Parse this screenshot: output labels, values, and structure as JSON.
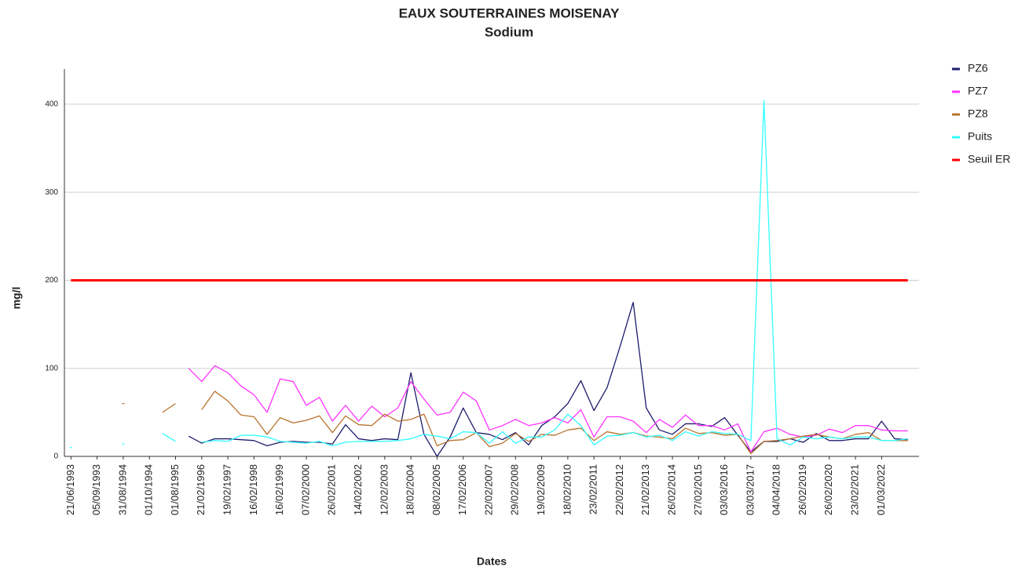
{
  "chart_data": {
    "type": "line",
    "title": "EAUX SOUTERRAINES MOISENAY",
    "subtitle": "Sodium",
    "x_label": "Dates",
    "y_label": "mg/l",
    "categories": [
      "21/06/1993",
      null,
      "05/09/1993",
      null,
      "31/08/1994",
      null,
      "01/10/1994",
      null,
      "01/08/1995",
      null,
      "21/02/1996",
      null,
      "19/02/1997",
      null,
      "16/02/1998",
      null,
      "16/02/1999",
      null,
      "07/02/2000",
      null,
      "26/02/2001",
      null,
      "14/02/2002",
      null,
      "12/02/2003",
      null,
      "18/02/2004",
      null,
      "08/02/2005",
      null,
      "17/02/2006",
      null,
      "22/02/2007",
      null,
      "29/02/2008",
      null,
      "19/02/2009",
      null,
      "18/02/2010",
      null,
      "23/02/2011",
      null,
      "22/02/2012",
      null,
      "21/02/2013",
      null,
      "26/02/2014",
      null,
      "27/02/2015",
      null,
      "03/03/2016",
      null,
      "03/03/2017",
      null,
      "04/04/2018",
      null,
      "26/02/2019",
      null,
      "26/02/2020",
      null,
      "23/02/2021",
      null,
      "01/03/2022",
      null,
      null
    ],
    "series": [
      {
        "name": "PZ6",
        "color": "#1c1c6c",
        "values": [
          null,
          null,
          null,
          null,
          null,
          null,
          null,
          null,
          null,
          23,
          15,
          20,
          20,
          19,
          18,
          12,
          16,
          17,
          16,
          16,
          14,
          36,
          20,
          18,
          20,
          19,
          95,
          25,
          0,
          22,
          55,
          27,
          25,
          19,
          27,
          13,
          35,
          45,
          60,
          86,
          52,
          78,
          125,
          175,
          55,
          30,
          25,
          37,
          37,
          34,
          44,
          24,
          5,
          17,
          17,
          20,
          16,
          26,
          18,
          18,
          20,
          20,
          40,
          20,
          19
        ]
      },
      {
        "name": "PZ7",
        "color": "#ff33ff",
        "values": [
          null,
          null,
          null,
          null,
          null,
          null,
          null,
          null,
          null,
          100,
          85,
          103,
          95,
          80,
          70,
          50,
          88,
          85,
          58,
          67,
          40,
          58,
          40,
          57,
          45,
          55,
          85,
          65,
          47,
          50,
          73,
          63,
          30,
          35,
          42,
          35,
          38,
          44,
          38,
          53,
          22,
          45,
          45,
          40,
          27,
          42,
          33,
          47,
          35,
          35,
          30,
          37,
          5,
          28,
          32,
          25,
          22,
          24,
          31,
          27,
          35,
          35,
          30,
          29,
          29
        ]
      },
      {
        "name": "PZ8",
        "color": "#b8732e",
        "values": [
          null,
          null,
          null,
          null,
          60,
          null,
          null,
          50,
          60,
          null,
          53,
          74,
          63,
          47,
          45,
          25,
          44,
          38,
          41,
          46,
          27,
          46,
          36,
          35,
          48,
          40,
          42,
          48,
          12,
          18,
          19,
          27,
          11,
          15,
          26,
          17,
          25,
          24,
          30,
          32,
          18,
          28,
          25,
          27,
          23,
          22,
          20,
          32,
          26,
          27,
          24,
          25,
          3,
          17,
          18,
          20,
          23,
          25,
          22,
          20,
          25,
          27,
          18,
          18,
          18
        ]
      },
      {
        "name": "Puits",
        "color": "#33ffff",
        "values": [
          10,
          null,
          null,
          null,
          14,
          null,
          null,
          26,
          17,
          null,
          16,
          18,
          17,
          24,
          24,
          22,
          17,
          16,
          15,
          17,
          12,
          16,
          17,
          17,
          17,
          18,
          20,
          25,
          23,
          20,
          28,
          27,
          15,
          28,
          15,
          22,
          22,
          30,
          48,
          35,
          13,
          23,
          24,
          27,
          22,
          24,
          18,
          28,
          23,
          28,
          26,
          25,
          18,
          404,
          20,
          13,
          22,
          20,
          22,
          20,
          22,
          22,
          18,
          18,
          20
        ]
      },
      {
        "name": "Seuil ER",
        "color": "#ff0000",
        "values": [
          200,
          200,
          200,
          200,
          200,
          200,
          200,
          200,
          200,
          200,
          200,
          200,
          200,
          200,
          200,
          200,
          200,
          200,
          200,
          200,
          200,
          200,
          200,
          200,
          200,
          200,
          200,
          200,
          200,
          200,
          200,
          200,
          200,
          200,
          200,
          200,
          200,
          200,
          200,
          200,
          200,
          200,
          200,
          200,
          200,
          200,
          200,
          200,
          200,
          200,
          200,
          200,
          200,
          200,
          200,
          200,
          200,
          200,
          200,
          200,
          200,
          200,
          200,
          200,
          200
        ]
      }
    ],
    "ylim": [
      0,
      440
    ],
    "yticks": [
      0,
      100,
      200,
      300,
      400
    ],
    "grid": true,
    "legend": "right"
  }
}
